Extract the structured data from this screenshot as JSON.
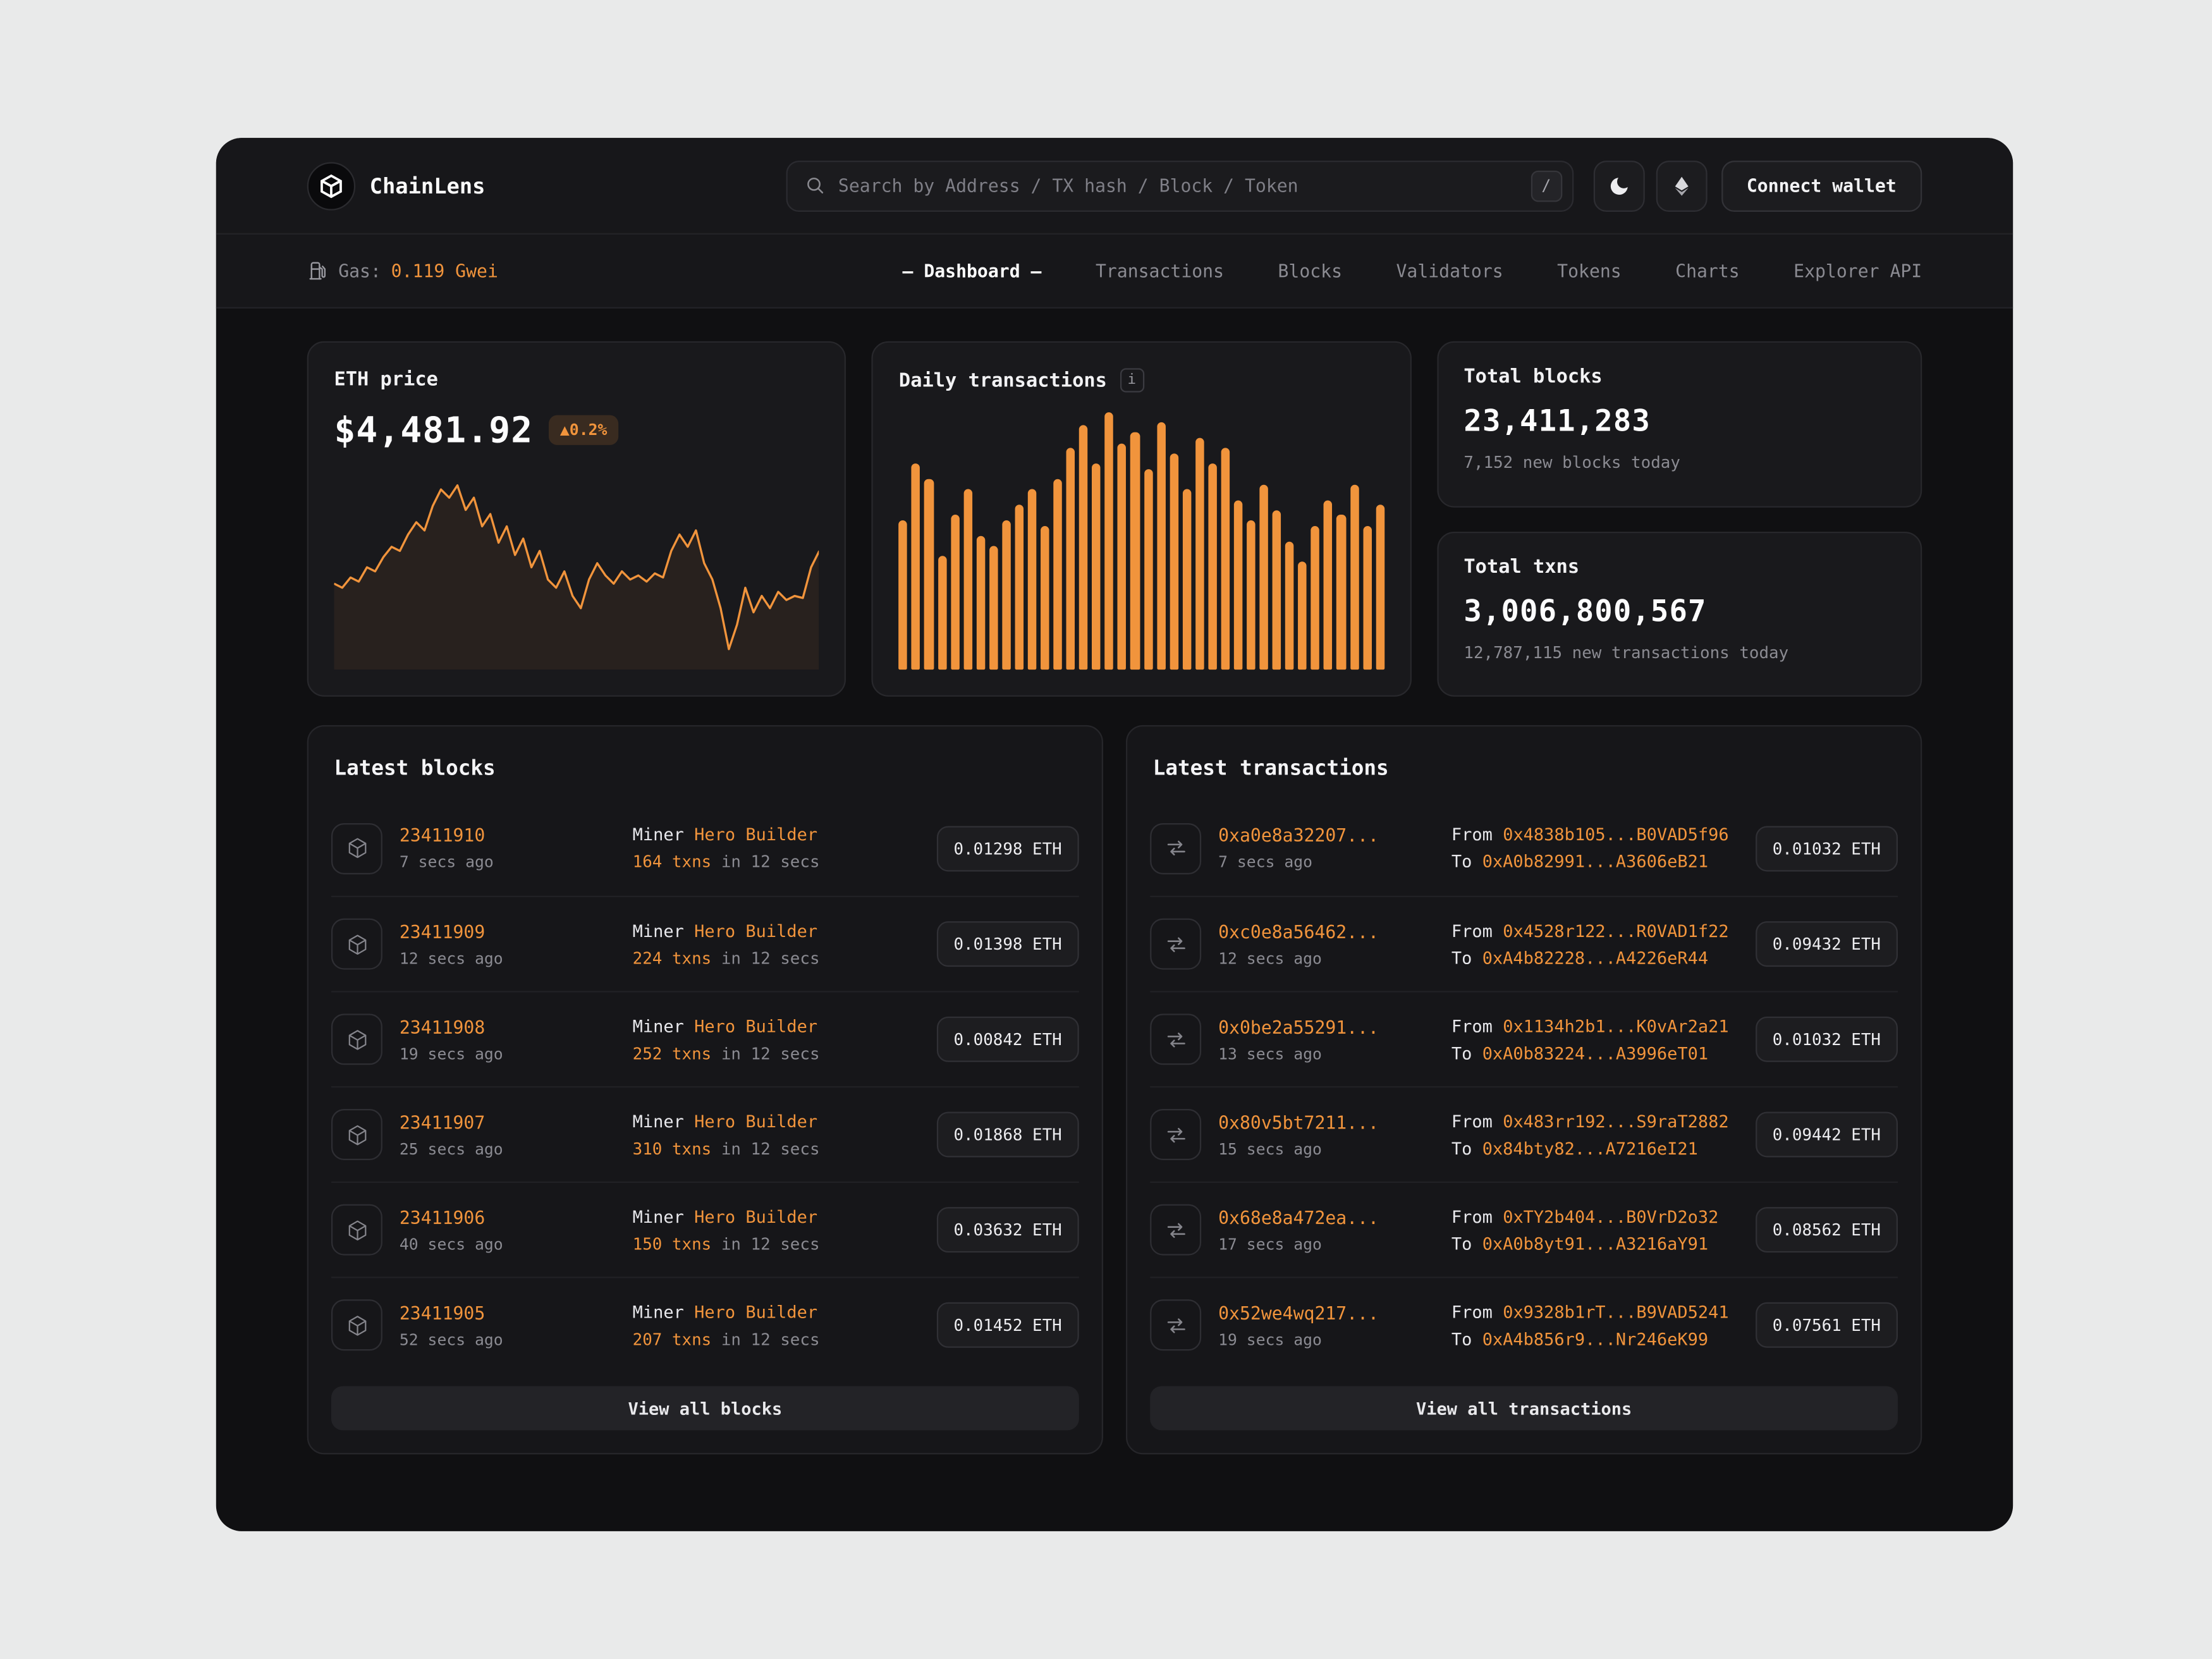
{
  "colors": {
    "accent": "#f1943c",
    "background": "#101012",
    "card": "#19191c"
  },
  "header": {
    "brand": "ChainLens",
    "search_placeholder": "Search by Address / TX hash / Block / Token",
    "search_shortcut": "/",
    "connect_wallet_label": "Connect wallet"
  },
  "navbar": {
    "gas_label": "Gas:",
    "gas_value": "0.119 Gwei",
    "items": [
      {
        "label": "— Dashboard —",
        "active": true
      },
      {
        "label": "Transactions",
        "active": false
      },
      {
        "label": "Blocks",
        "active": false
      },
      {
        "label": "Validators",
        "active": false
      },
      {
        "label": "Tokens",
        "active": false
      },
      {
        "label": "Charts",
        "active": false
      },
      {
        "label": "Explorer API",
        "active": false
      }
    ]
  },
  "stats": {
    "eth_price": {
      "title": "ETH price",
      "value": "$4,481.92",
      "change": "▲0.2%"
    },
    "daily_transactions": {
      "title": "Daily transactions",
      "info_icon": "i"
    },
    "total_blocks": {
      "title": "Total blocks",
      "value": "23,411,283",
      "subtitle": "7,152 new blocks today"
    },
    "total_txns": {
      "title": "Total txns",
      "value": "3,006,800,567",
      "subtitle": "12,787,115 new transactions today"
    }
  },
  "chart_data": [
    {
      "type": "line",
      "title": "ETH price",
      "color": "#f1943c",
      "ylim": [
        0,
        100
      ],
      "y": [
        42,
        40,
        45,
        43,
        50,
        48,
        55,
        60,
        58,
        66,
        72,
        68,
        80,
        88,
        84,
        90,
        78,
        84,
        70,
        76,
        62,
        70,
        56,
        64,
        50,
        58,
        44,
        40,
        48,
        36,
        30,
        44,
        52,
        46,
        42,
        48,
        44,
        46,
        43,
        47,
        45,
        58,
        66,
        60,
        68,
        52,
        44,
        30,
        10,
        22,
        40,
        28,
        36,
        30,
        38,
        34,
        36,
        35,
        50,
        58
      ]
    },
    {
      "type": "bar",
      "title": "Daily transactions",
      "color": "#f1943c",
      "ylim": [
        0,
        100
      ],
      "values": [
        58,
        80,
        74,
        44,
        60,
        70,
        52,
        48,
        58,
        64,
        70,
        56,
        74,
        86,
        95,
        80,
        100,
        88,
        92,
        78,
        96,
        84,
        70,
        90,
        80,
        86,
        66,
        58,
        72,
        62,
        50,
        42,
        56,
        66,
        60,
        72,
        56,
        64
      ]
    }
  ],
  "latest_blocks": {
    "title": "Latest blocks",
    "miner_label": "Miner",
    "view_all_label": "View all blocks",
    "rows": [
      {
        "number": "23411910",
        "age": "7 secs ago",
        "miner": "Hero Builder",
        "txns": "164 txns",
        "duration": "in 12 secs",
        "value": "0.01298 ETH"
      },
      {
        "number": "23411909",
        "age": "12 secs ago",
        "miner": "Hero Builder",
        "txns": "224 txns",
        "duration": "in 12 secs",
        "value": "0.01398 ETH"
      },
      {
        "number": "23411908",
        "age": "19 secs ago",
        "miner": "Hero Builder",
        "txns": "252 txns",
        "duration": "in 12 secs",
        "value": "0.00842 ETH"
      },
      {
        "number": "23411907",
        "age": "25 secs ago",
        "miner": "Hero Builder",
        "txns": "310 txns",
        "duration": "in 12 secs",
        "value": "0.01868 ETH"
      },
      {
        "number": "23411906",
        "age": "40 secs ago",
        "miner": "Hero Builder",
        "txns": "150 txns",
        "duration": "in 12 secs",
        "value": "0.03632 ETH"
      },
      {
        "number": "23411905",
        "age": "52 secs ago",
        "miner": "Hero Builder",
        "txns": "207 txns",
        "duration": "in 12 secs",
        "value": "0.01452 ETH"
      }
    ]
  },
  "latest_transactions": {
    "title": "Latest transactions",
    "from_label": "From",
    "to_label": "To",
    "view_all_label": "View all transactions",
    "rows": [
      {
        "hash": "0xa0e8a32207...",
        "age": "7 secs ago",
        "from": "0x4838b105...B0VAD5f96",
        "to": "0xA0b82991...A3606eB21",
        "value": "0.01032 ETH"
      },
      {
        "hash": "0xc0e8a56462...",
        "age": "12 secs ago",
        "from": "0x4528r122...R0VAD1f22",
        "to": "0xA4b82228...A4226eR44",
        "value": "0.09432 ETH"
      },
      {
        "hash": "0x0be2a55291...",
        "age": "13 secs ago",
        "from": "0x1134h2b1...K0vAr2a21",
        "to": "0xA0b83224...A3996eT01",
        "value": "0.01032 ETH"
      },
      {
        "hash": "0x80v5bt7211...",
        "age": "15 secs ago",
        "from": "0x483rr192...S9raT2882",
        "to": "0x84bty82...A7216eI21",
        "value": "0.09442 ETH"
      },
      {
        "hash": "0x68e8a472ea...",
        "age": "17 secs ago",
        "from": "0xTY2b404...B0VrD2o32",
        "to": "0xA0b8yt91...A3216aY91",
        "value": "0.08562 ETH"
      },
      {
        "hash": "0x52we4wq217...",
        "age": "19 secs ago",
        "from": "0x9328b1rT...B9VAD5241",
        "to": "0xA4b856r9...Nr246eK99",
        "value": "0.07561 ETH"
      }
    ]
  }
}
